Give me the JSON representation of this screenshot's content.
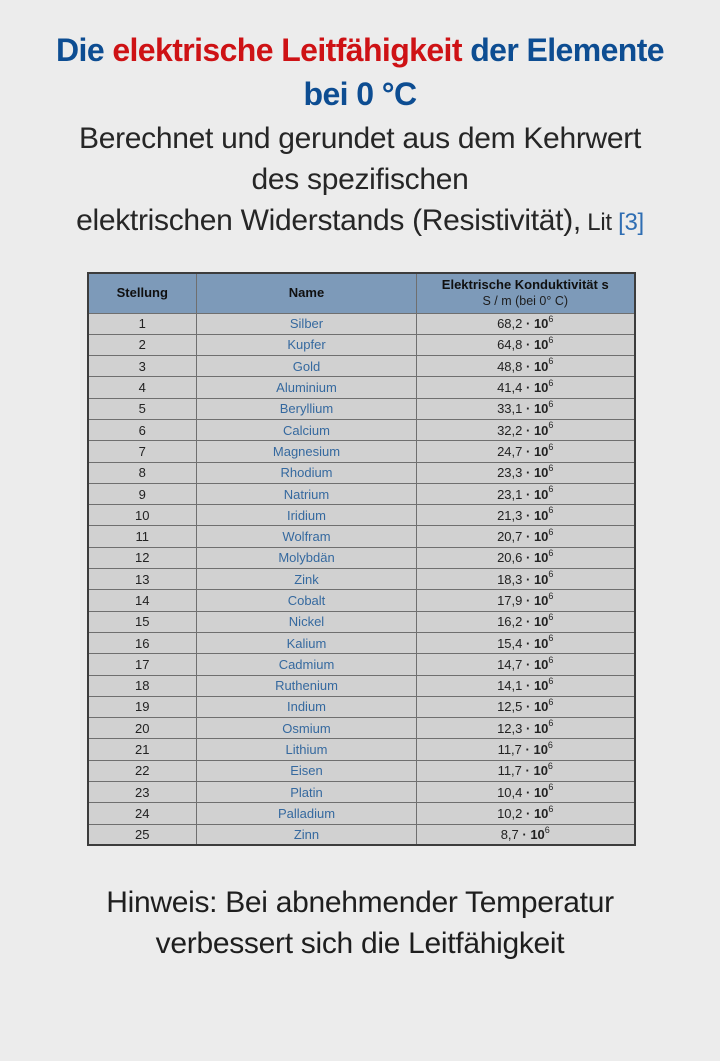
{
  "title": {
    "part1": "Die ",
    "part2": "elektrische Leitfähigkeit",
    "part3": " der Elemente",
    "line2": "bei 0 °C"
  },
  "subtitle": {
    "line1": "Berechnet und gerundet aus dem Kehrwert",
    "line2": "des spezifischen",
    "line3": "elektrischen Widerstands (Resistivität),",
    "lit_label": " Lit ",
    "lit_ref": "[3]"
  },
  "table": {
    "headers": {
      "position": "Stellung",
      "name": "Name",
      "conductivity_line1": "Elektrische Konduktivität s",
      "conductivity_line2": "S / m (bei 0° C)"
    },
    "value_format": {
      "separator": " · ",
      "base": "10"
    },
    "rows": [
      {
        "position": "1",
        "name": "Silber",
        "mantissa": "68,2",
        "exponent": "6"
      },
      {
        "position": "2",
        "name": "Kupfer",
        "mantissa": "64,8",
        "exponent": "6"
      },
      {
        "position": "3",
        "name": "Gold",
        "mantissa": "48,8",
        "exponent": "6"
      },
      {
        "position": "4",
        "name": "Aluminium",
        "mantissa": "41,4",
        "exponent": "6"
      },
      {
        "position": "5",
        "name": "Beryllium",
        "mantissa": "33,1",
        "exponent": "6"
      },
      {
        "position": "6",
        "name": "Calcium",
        "mantissa": "32,2",
        "exponent": "6"
      },
      {
        "position": "7",
        "name": "Magnesium",
        "mantissa": "24,7",
        "exponent": "6"
      },
      {
        "position": "8",
        "name": "Rhodium",
        "mantissa": "23,3",
        "exponent": "6"
      },
      {
        "position": "9",
        "name": "Natrium",
        "mantissa": "23,1",
        "exponent": "6"
      },
      {
        "position": "10",
        "name": "Iridium",
        "mantissa": "21,3",
        "exponent": "6"
      },
      {
        "position": "11",
        "name": "Wolfram",
        "mantissa": "20,7",
        "exponent": "6"
      },
      {
        "position": "12",
        "name": "Molybdän",
        "mantissa": "20,6",
        "exponent": "6"
      },
      {
        "position": "13",
        "name": "Zink",
        "mantissa": "18,3",
        "exponent": "6"
      },
      {
        "position": "14",
        "name": "Cobalt",
        "mantissa": "17,9",
        "exponent": "6"
      },
      {
        "position": "15",
        "name": "Nickel",
        "mantissa": "16,2",
        "exponent": "6"
      },
      {
        "position": "16",
        "name": "Kalium",
        "mantissa": "15,4",
        "exponent": "6"
      },
      {
        "position": "17",
        "name": "Cadmium",
        "mantissa": "14,7",
        "exponent": "6"
      },
      {
        "position": "18",
        "name": "Ruthenium",
        "mantissa": "14,1",
        "exponent": "6"
      },
      {
        "position": "19",
        "name": "Indium",
        "mantissa": "12,5",
        "exponent": "6"
      },
      {
        "position": "20",
        "name": "Osmium",
        "mantissa": "12,3",
        "exponent": "6"
      },
      {
        "position": "21",
        "name": "Lithium",
        "mantissa": "11,7",
        "exponent": "6"
      },
      {
        "position": "22",
        "name": "Eisen",
        "mantissa": "11,7",
        "exponent": "6"
      },
      {
        "position": "23",
        "name": "Platin",
        "mantissa": "10,4",
        "exponent": "6"
      },
      {
        "position": "24",
        "name": "Palladium",
        "mantissa": "10,2",
        "exponent": "6"
      },
      {
        "position": "25",
        "name": "Zinn",
        "mantissa": "8,7",
        "exponent": "6"
      }
    ]
  },
  "note": {
    "line1": "Hinweis: Bei abnehmender Temperatur",
    "line2": "verbessert sich die Leitfähigkeit"
  },
  "colors": {
    "page_bg": "#ececec",
    "title_blue": "#0d4d92",
    "title_red": "#ce1215",
    "link_blue": "#35699f",
    "header_bg": "#7d9ab9",
    "row_bg": "#d1d1d1"
  }
}
